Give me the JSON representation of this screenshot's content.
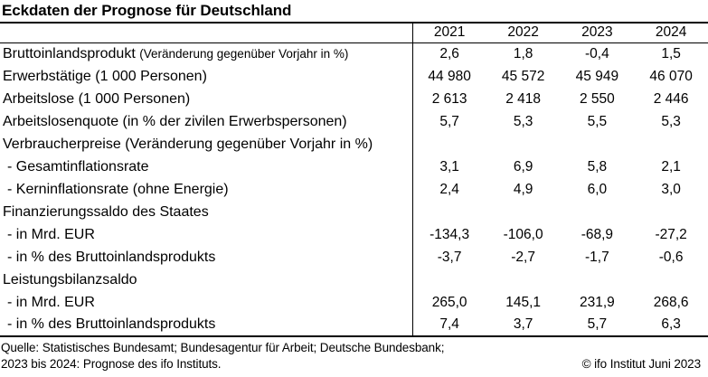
{
  "chart_data": {
    "type": "table",
    "title": "Eckdaten der Prognose für Deutschland",
    "columns": [
      "",
      "2021",
      "2022",
      "2023",
      "2024"
    ],
    "rows": [
      {
        "label": "Bruttoinlandsprodukt",
        "label_note": "(Veränderung gegenüber Vorjahr in %)",
        "indent": false,
        "values": [
          "2,6",
          "1,8",
          "-0,4",
          "1,5"
        ]
      },
      {
        "label": "Erwerbstätige (1 000 Personen)",
        "indent": false,
        "values": [
          "44 980",
          "45 572",
          "45 949",
          "46 070"
        ]
      },
      {
        "label": "Arbeitslose (1 000 Personen)",
        "indent": false,
        "values": [
          "2 613",
          "2 418",
          "2 550",
          "2 446"
        ]
      },
      {
        "label": "Arbeitslosenquote (in % der zivilen Erwerbspersonen)",
        "indent": false,
        "values": [
          "5,7",
          "5,3",
          "5,5",
          "5,3"
        ]
      },
      {
        "label": "Verbraucherpreise (Veränderung gegenüber Vorjahr in %)",
        "indent": false,
        "values": [
          "",
          "",
          "",
          ""
        ]
      },
      {
        "label": "- Gesamtinflationsrate",
        "indent": true,
        "values": [
          "3,1",
          "6,9",
          "5,8",
          "2,1"
        ]
      },
      {
        "label": "- Kerninflationsrate (ohne Energie)",
        "indent": true,
        "values": [
          "2,4",
          "4,9",
          "6,0",
          "3,0"
        ]
      },
      {
        "label": "Finanzierungssaldo des Staates",
        "indent": false,
        "values": [
          "",
          "",
          "",
          ""
        ]
      },
      {
        "label": "- in Mrd. EUR",
        "indent": true,
        "values": [
          "-134,3",
          "-106,0",
          "-68,9",
          "-27,2"
        ]
      },
      {
        "label": "- in % des Bruttoinlandsprodukts",
        "indent": true,
        "values": [
          "-3,7",
          "-2,7",
          "-1,7",
          "-0,6"
        ]
      },
      {
        "label": "Leistungsbilanzsaldo",
        "indent": false,
        "values": [
          "",
          "",
          "",
          ""
        ]
      },
      {
        "label": "- in Mrd. EUR",
        "indent": true,
        "values": [
          "265,0",
          "145,1",
          "231,9",
          "268,6"
        ]
      },
      {
        "label": "- in % des Bruttoinlandsprodukts",
        "indent": true,
        "values": [
          "7,4",
          "3,7",
          "5,7",
          "6,3"
        ]
      }
    ]
  },
  "footer": {
    "source_line": "Quelle: Statistisches Bundesamt; Bundesagentur für Arbeit; Deutsche Bundesbank;",
    "forecast_line": "2023 bis 2024: Prognose des ifo Instituts.",
    "copyright": "© ifo Institut Juni 2023"
  }
}
